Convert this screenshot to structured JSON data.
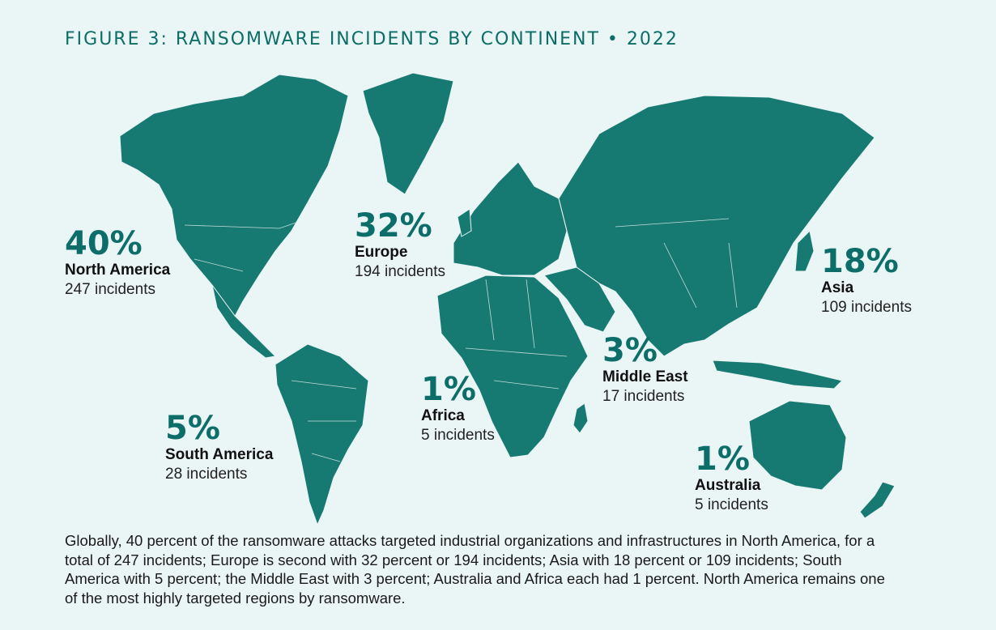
{
  "title": "FIGURE 3: RANSOMWARE INCIDENTS BY CONTINENT • 2022",
  "colors": {
    "land": "#177a72",
    "background": "#eaf5f6",
    "accent": "#0d6e69"
  },
  "regions": {
    "north_america": {
      "percent": "40%",
      "name": "North America",
      "incidents": "247 incidents"
    },
    "europe": {
      "percent": "32%",
      "name": "Europe",
      "incidents": "194 incidents"
    },
    "asia": {
      "percent": "18%",
      "name": "Asia",
      "incidents": "109 incidents"
    },
    "middle_east": {
      "percent": "3%",
      "name": "Middle East",
      "incidents": "17 incidents"
    },
    "africa": {
      "percent": "1%",
      "name": "Africa",
      "incidents": "5 incidents"
    },
    "south_america": {
      "percent": "5%",
      "name": "South America",
      "incidents": "28 incidents"
    },
    "australia": {
      "percent": "1%",
      "name": "Australia",
      "incidents": "5 incidents"
    }
  },
  "caption": "Globally, 40 percent of the ransomware attacks targeted industrial organizations and infrastructures in North America, for a total of 247 incidents; Europe is second with 32 percent or 194 incidents; Asia with 18 percent or 109 incidents; South America with 5 percent; the Middle East with 3 percent; Australia and Africa each had 1 percent. North America remains one of the most highly targeted regions by ransomware."
}
